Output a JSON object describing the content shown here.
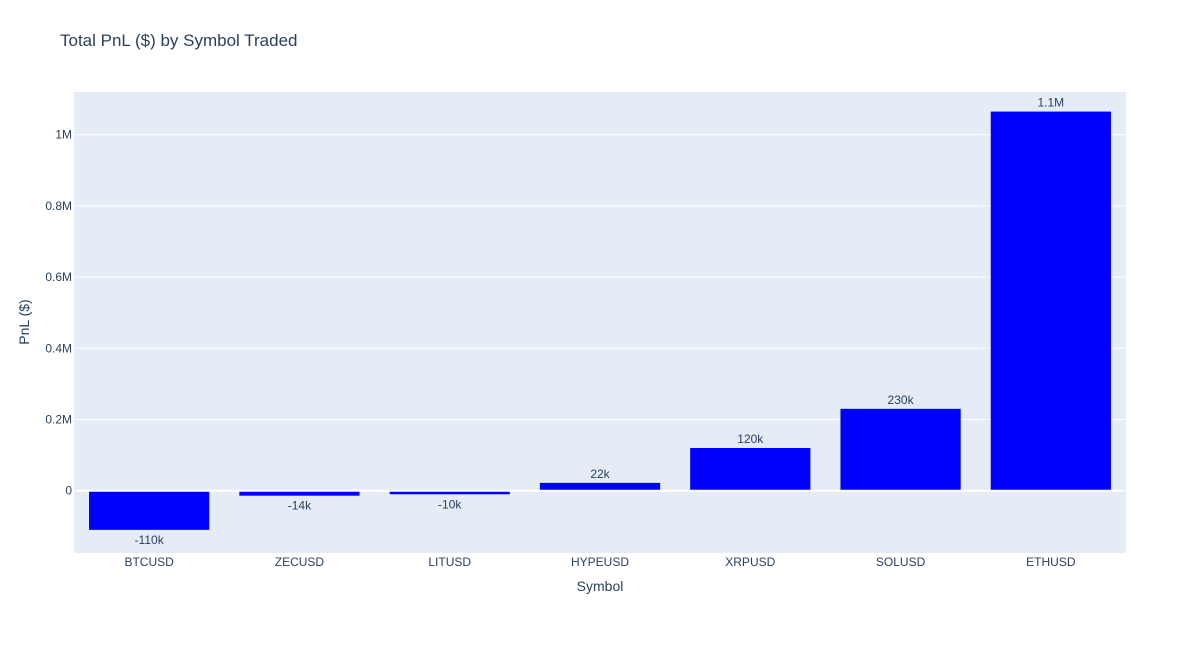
{
  "chart_data": {
    "type": "bar",
    "title": "Total PnL ($) by Symbol Traded",
    "xlabel": "Symbol",
    "ylabel": "PnL ($)",
    "categories": [
      "BTCUSD",
      "ZECUSD",
      "LITUSD",
      "HYPEUSD",
      "XRPUSD",
      "SOLUSD",
      "ETHUSD"
    ],
    "values": [
      -110000,
      -14000,
      -10000,
      22000,
      120000,
      230000,
      1065000
    ],
    "bar_labels": [
      "-110k",
      "-14k",
      "-10k",
      "22k",
      "120k",
      "230k",
      "1.1M"
    ],
    "ylim": [
      -175000,
      1120000
    ],
    "yticks": [
      0,
      200000,
      400000,
      600000,
      800000,
      1000000
    ],
    "ytick_labels": [
      "0",
      "0.2M",
      "0.4M",
      "0.6M",
      "0.8M",
      "1M"
    ],
    "grid": true,
    "legend": "none",
    "colors": {
      "bar": "#0000ff",
      "plot_bg": "#e5ecf6",
      "grid": "#ffffff",
      "text": "#2a3f5f"
    }
  }
}
